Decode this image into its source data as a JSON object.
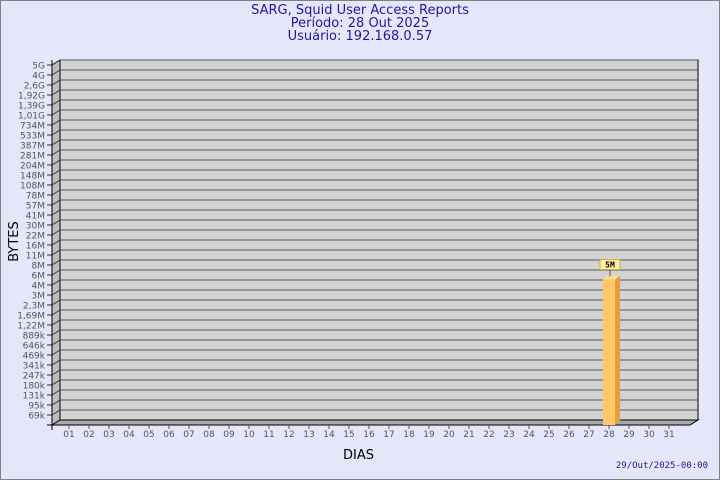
{
  "header": {
    "title": "SARG, Squid User Access Reports",
    "period": "Período: 28 Out 2025",
    "user": "Usuário: 192.168.0.57"
  },
  "footer": {
    "timestamp": "29/Out/2025-00:00"
  },
  "chart_data": {
    "type": "bar",
    "xlabel": "DIAS",
    "ylabel": "BYTES",
    "categories": [
      "01",
      "02",
      "03",
      "04",
      "05",
      "06",
      "07",
      "08",
      "09",
      "10",
      "11",
      "12",
      "13",
      "14",
      "15",
      "16",
      "17",
      "18",
      "19",
      "20",
      "21",
      "22",
      "23",
      "24",
      "25",
      "26",
      "27",
      "28",
      "29",
      "30",
      "31"
    ],
    "y_ticks": [
      "5G",
      "4G",
      "2,6G",
      "1,92G",
      "1,39G",
      "1,01G",
      "734M",
      "533M",
      "387M",
      "281M",
      "204M",
      "148M",
      "108M",
      "78M",
      "57M",
      "41M",
      "30M",
      "22M",
      "16M",
      "11M",
      "8M",
      "6M",
      "4M",
      "3M",
      "2,3M",
      "1,69M",
      "1,22M",
      "889k",
      "646k",
      "469k",
      "341k",
      "247k",
      "180k",
      "131k",
      "95k",
      "69k"
    ],
    "y_scale": "log",
    "grid": true,
    "series": [
      {
        "values": [
          null,
          null,
          null,
          null,
          null,
          null,
          null,
          null,
          null,
          null,
          null,
          null,
          null,
          null,
          null,
          null,
          null,
          null,
          null,
          null,
          null,
          null,
          null,
          null,
          null,
          null,
          null,
          5,
          null,
          null,
          null
        ],
        "unit": "M",
        "data_labels": {
          "28": "5M"
        }
      }
    ],
    "colors": {
      "bar_front": "#ffc766",
      "bar_side": "#e0a040",
      "bar_top": "#ffe08a",
      "wall": "#d3d3d3",
      "grid": "#555555",
      "background": "#e6e6fa",
      "title": "#1a1aa0",
      "label_box": "#fff0a0"
    }
  }
}
